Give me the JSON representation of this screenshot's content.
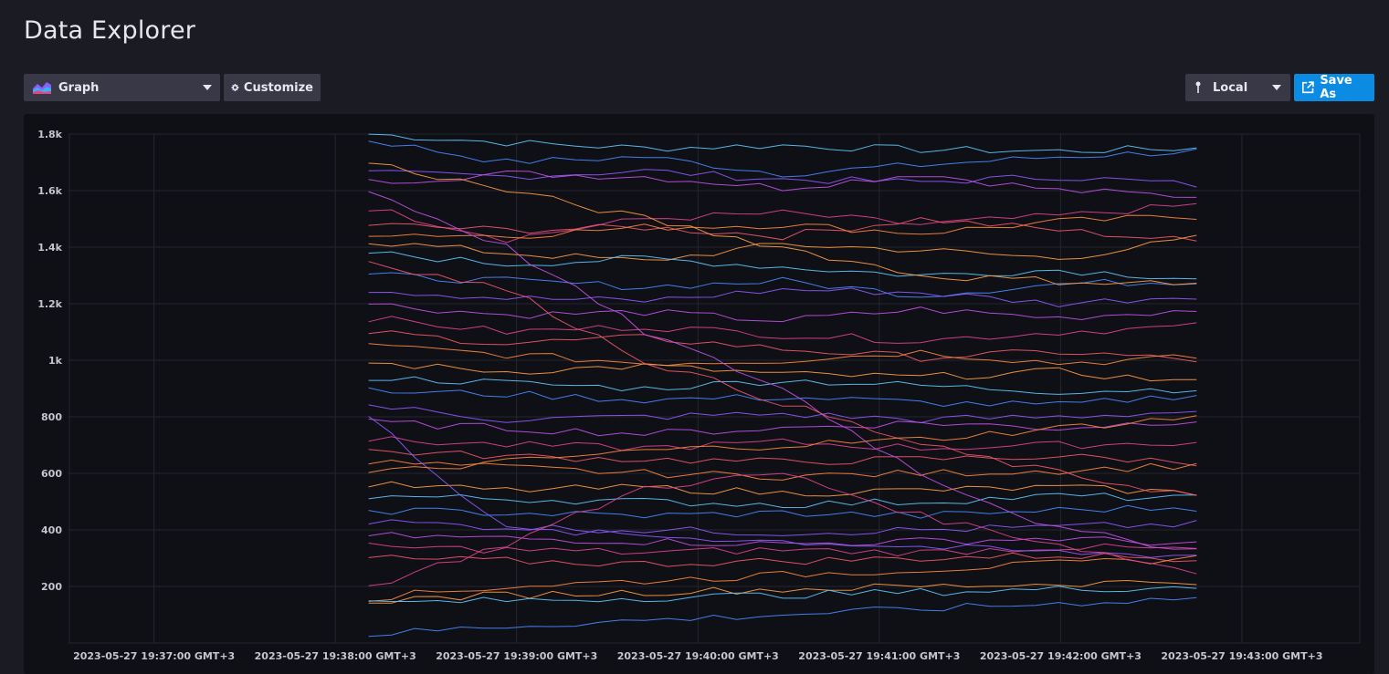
{
  "page": {
    "title": "Data Explorer"
  },
  "toolbar": {
    "visualization_label": "Graph",
    "visualization_icon": "graph-icon",
    "customize_label": "Customize",
    "customize_icon": "gear-icon",
    "timezone_label": "Local",
    "timezone_icon": "pin-icon",
    "save_label": "Save As",
    "save_icon": "external-link-icon"
  },
  "colors": {
    "accent": "#0b8be2",
    "panel_bg": "#0f0f16",
    "page_bg": "#1b1b23",
    "series_palette": [
      "#5fc8ff",
      "#4a8cff",
      "#8f5cff",
      "#c452e8",
      "#e0458f",
      "#f2596b",
      "#ff8a3d",
      "#ff9f45"
    ]
  },
  "chart_data": {
    "type": "line",
    "title": "",
    "xlabel": "",
    "ylabel": "",
    "ylim": [
      0,
      1800
    ],
    "grid": true,
    "legend": "none",
    "y_ticks": [
      {
        "value": 200,
        "label": "200"
      },
      {
        "value": 400,
        "label": "400"
      },
      {
        "value": 600,
        "label": "600"
      },
      {
        "value": 800,
        "label": "800"
      },
      {
        "value": 1000,
        "label": "1k"
      },
      {
        "value": 1200,
        "label": "1.2k"
      },
      {
        "value": 1400,
        "label": "1.4k"
      },
      {
        "value": 1600,
        "label": "1.6k"
      },
      {
        "value": 1800,
        "label": "1.8k"
      }
    ],
    "x_ticks": [
      "2023-05-27 19:37:00 GMT+3",
      "2023-05-27 19:38:00 GMT+3",
      "2023-05-27 19:39:00 GMT+3",
      "2023-05-27 19:40:00 GMT+3",
      "2023-05-27 19:41:00 GMT+3",
      "2023-05-27 19:42:00 GMT+3",
      "2023-05-27 19:43:00 GMT+3"
    ],
    "xlim": [
      "2023-05-27 19:36:32 GMT+3",
      "2023-05-27 19:43:39 GMT+3"
    ],
    "series_time_range": [
      "2023-05-27 19:38:11 GMT+3",
      "2023-05-27 19:42:45 GMT+3"
    ],
    "series": [
      {
        "values": [
          1800,
          1770,
          1750,
          1760,
          1745,
          1740,
          1750
        ]
      },
      {
        "values": [
          1780,
          1700,
          1720,
          1660,
          1690,
          1720,
          1740
        ]
      },
      {
        "values": [
          1660,
          1650,
          1670,
          1640,
          1630,
          1650,
          1620
        ]
      },
      {
        "values": [
          1630,
          1660,
          1650,
          1610,
          1660,
          1600,
          1580
        ]
      },
      {
        "values": [
          1540,
          1430,
          1500,
          1520,
          1480,
          1510,
          1550
        ]
      },
      {
        "values": [
          1480,
          1460,
          1470,
          1440,
          1500,
          1460,
          1420
        ]
      },
      {
        "values": [
          1450,
          1440,
          1470,
          1480,
          1450,
          1490,
          1510
        ]
      },
      {
        "values": [
          1420,
          1380,
          1350,
          1410,
          1390,
          1360,
          1430
        ]
      },
      {
        "values": [
          1380,
          1340,
          1360,
          1330,
          1300,
          1320,
          1290
        ]
      },
      {
        "values": [
          1300,
          1280,
          1260,
          1280,
          1230,
          1270,
          1280
        ]
      },
      {
        "values": [
          1250,
          1220,
          1210,
          1250,
          1240,
          1200,
          1230
        ]
      },
      {
        "values": [
          1200,
          1160,
          1170,
          1140,
          1180,
          1150,
          1180
        ]
      },
      {
        "values": [
          1150,
          1100,
          1120,
          1090,
          1070,
          1100,
          1120
        ]
      },
      {
        "values": [
          1100,
          1060,
          1080,
          1040,
          1010,
          1030,
          1000
        ]
      },
      {
        "values": [
          1050,
          1020,
          990,
          1000,
          1030,
          990,
          1010
        ]
      },
      {
        "values": [
          990,
          960,
          980,
          950,
          940,
          960,
          920
        ]
      },
      {
        "values": [
          940,
          920,
          900,
          930,
          910,
          890,
          900
        ]
      },
      {
        "values": [
          890,
          880,
          860,
          870,
          850,
          840,
          880
        ]
      },
      {
        "values": [
          840,
          790,
          800,
          810,
          790,
          800,
          820
        ]
      },
      {
        "values": [
          780,
          760,
          740,
          760,
          780,
          760,
          790
        ]
      },
      {
        "values": [
          720,
          700,
          690,
          710,
          690,
          700,
          710
        ]
      },
      {
        "values": [
          680,
          660,
          650,
          640,
          650,
          660,
          640
        ]
      },
      {
        "values": [
          640,
          620,
          600,
          590,
          600,
          610,
          630
        ]
      },
      {
        "values": [
          560,
          540,
          550,
          530,
          540,
          550,
          530
        ]
      },
      {
        "values": [
          520,
          510,
          500,
          490,
          500,
          520,
          510
        ]
      },
      {
        "values": [
          470,
          460,
          450,
          460,
          450,
          470,
          480
        ]
      },
      {
        "values": [
          430,
          410,
          400,
          390,
          400,
          410,
          420
        ]
      },
      {
        "values": [
          380,
          370,
          360,
          350,
          360,
          370,
          350
        ]
      },
      {
        "values": [
          340,
          330,
          320,
          330,
          320,
          340,
          330
        ]
      },
      {
        "values": [
          300,
          290,
          280,
          290,
          300,
          310,
          300
        ]
      },
      {
        "values": [
          160,
          200,
          220,
          240,
          260,
          280,
          300
        ]
      },
      {
        "values": [
          150,
          170,
          180,
          190,
          200,
          210,
          220
        ]
      },
      {
        "values": [
          140,
          150,
          160,
          170,
          180,
          190,
          200
        ]
      },
      {
        "values": [
          30,
          60,
          80,
          100,
          120,
          140,
          160
        ]
      },
      {
        "values": [
          800,
          400,
          380,
          360,
          340,
          320,
          310
        ]
      },
      {
        "values": [
          1600,
          1400,
          1100,
          900,
          600,
          400,
          330
        ]
      },
      {
        "values": [
          200,
          350,
          550,
          600,
          450,
          350,
          250
        ]
      },
      {
        "values": [
          1350,
          1250,
          1000,
          850,
          700,
          600,
          520
        ]
      },
      {
        "values": [
          600,
          640,
          680,
          700,
          720,
          760,
          800
        ]
      },
      {
        "values": [
          1700,
          1600,
          1500,
          1400,
          1300,
          1280,
          1270
        ]
      }
    ]
  }
}
